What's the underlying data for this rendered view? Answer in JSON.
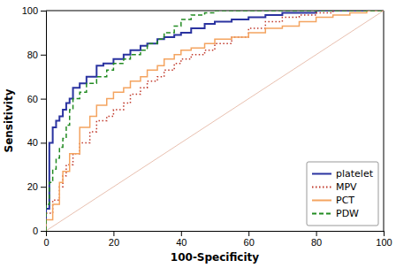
{
  "chart_data": {
    "type": "line",
    "xlabel": "100-Specificity",
    "ylabel": "Sensitivity",
    "xlim": [
      0,
      100
    ],
    "ylim": [
      0,
      100
    ],
    "xticks": [
      0,
      20,
      40,
      60,
      80,
      100
    ],
    "yticks": [
      0,
      20,
      40,
      60,
      80,
      100
    ],
    "grid": false,
    "legend": "lower right",
    "series": [
      {
        "color": "#e8c0b0",
        "line_style": "solid",
        "x": [
          0,
          100
        ],
        "values": [
          0,
          100
        ]
      },
      {
        "name": "platelet",
        "color": "#2a33a0",
        "line_style": "solid",
        "x": [
          0,
          0,
          1,
          1,
          2,
          2,
          3,
          3,
          4,
          4,
          5,
          5,
          6,
          6,
          7,
          7,
          8,
          8,
          10,
          10,
          12,
          12,
          15,
          15,
          17,
          17,
          20,
          20,
          23,
          23,
          25,
          25,
          28,
          28,
          30,
          30,
          33,
          33,
          35,
          35,
          38,
          38,
          40,
          40,
          43,
          43,
          47,
          47,
          50,
          50,
          55,
          55,
          60,
          60,
          65,
          65,
          70,
          70,
          75,
          75,
          80,
          80,
          85,
          85,
          90,
          90,
          95,
          95,
          100,
          100
        ],
        "values": [
          0,
          10,
          10,
          40,
          40,
          47,
          47,
          50,
          50,
          52,
          52,
          55,
          55,
          58,
          58,
          60,
          60,
          65,
          65,
          67,
          67,
          70,
          70,
          75,
          75,
          76,
          76,
          78,
          78,
          80,
          80,
          82,
          82,
          84,
          84,
          85,
          85,
          87,
          87,
          88,
          88,
          89,
          89,
          90,
          90,
          92,
          92,
          94,
          94,
          95,
          95,
          96,
          96,
          97,
          97,
          98,
          98,
          99,
          99,
          99,
          99,
          100,
          100,
          100,
          100,
          100,
          100,
          100,
          100,
          100
        ]
      },
      {
        "name": "MPV",
        "color": "#c0392b",
        "line_style": "dotted",
        "x": [
          0,
          0,
          2,
          2,
          4,
          4,
          5,
          5,
          6,
          6,
          8,
          8,
          10,
          10,
          13,
          13,
          15,
          15,
          18,
          18,
          20,
          20,
          23,
          23,
          25,
          25,
          28,
          28,
          30,
          30,
          33,
          33,
          35,
          35,
          38,
          38,
          40,
          40,
          43,
          43,
          47,
          47,
          50,
          50,
          55,
          55,
          60,
          60,
          65,
          65,
          70,
          70,
          75,
          75,
          80,
          80,
          85,
          85,
          90,
          90,
          95,
          95,
          100,
          100
        ],
        "values": [
          0,
          8,
          8,
          14,
          14,
          20,
          20,
          25,
          25,
          30,
          30,
          35,
          35,
          40,
          40,
          45,
          45,
          50,
          50,
          52,
          52,
          55,
          55,
          58,
          58,
          62,
          62,
          65,
          65,
          68,
          68,
          70,
          70,
          73,
          73,
          76,
          76,
          78,
          78,
          80,
          80,
          82,
          82,
          85,
          85,
          88,
          88,
          92,
          92,
          95,
          95,
          97,
          97,
          98,
          98,
          99,
          99,
          100,
          100,
          100,
          100,
          100,
          100,
          100
        ]
      },
      {
        "name": "PCT",
        "color": "#f4a460",
        "line_style": "solid",
        "x": [
          0,
          0,
          2,
          2,
          4,
          4,
          5,
          5,
          7,
          7,
          10,
          10,
          13,
          13,
          15,
          15,
          18,
          18,
          20,
          20,
          23,
          23,
          25,
          25,
          28,
          28,
          30,
          30,
          33,
          33,
          35,
          35,
          38,
          38,
          40,
          40,
          43,
          43,
          47,
          47,
          50,
          50,
          55,
          55,
          60,
          60,
          65,
          65,
          70,
          70,
          75,
          75,
          80,
          80,
          85,
          85,
          90,
          90,
          95,
          95,
          100,
          100
        ],
        "values": [
          0,
          5,
          5,
          12,
          12,
          22,
          22,
          27,
          27,
          35,
          35,
          47,
          47,
          52,
          52,
          57,
          57,
          60,
          60,
          63,
          63,
          65,
          65,
          68,
          68,
          70,
          70,
          73,
          73,
          75,
          75,
          78,
          78,
          80,
          80,
          82,
          82,
          83,
          83,
          85,
          85,
          87,
          87,
          88,
          88,
          90,
          90,
          92,
          92,
          93,
          93,
          95,
          95,
          97,
          97,
          98,
          98,
          99,
          99,
          100,
          100,
          100
        ]
      },
      {
        "name": "PDW",
        "color": "#228B22",
        "line_style": "dashed",
        "x": [
          0,
          0,
          1,
          1,
          2,
          2,
          3,
          3,
          4,
          4,
          5,
          5,
          6,
          6,
          7,
          7,
          8,
          8,
          10,
          10,
          12,
          12,
          15,
          15,
          18,
          18,
          20,
          20,
          23,
          23,
          25,
          25,
          28,
          28,
          30,
          30,
          33,
          33,
          35,
          35,
          38,
          38,
          40,
          40,
          43,
          43,
          47,
          47,
          50,
          50,
          55,
          55,
          60,
          60,
          65,
          65,
          70,
          70,
          75,
          75,
          80,
          80,
          85,
          85,
          90,
          90,
          95,
          95,
          100,
          100
        ],
        "values": [
          0,
          12,
          12,
          22,
          22,
          28,
          28,
          33,
          33,
          38,
          38,
          42,
          42,
          48,
          48,
          55,
          55,
          60,
          60,
          63,
          63,
          67,
          67,
          70,
          70,
          73,
          73,
          76,
          76,
          78,
          78,
          80,
          80,
          82,
          82,
          85,
          85,
          87,
          87,
          90,
          90,
          93,
          93,
          96,
          96,
          98,
          98,
          99,
          99,
          100,
          100,
          100,
          100,
          100,
          100,
          100,
          100,
          100,
          100,
          100,
          100,
          100,
          100,
          100,
          100,
          100,
          100,
          100,
          100,
          100
        ]
      }
    ]
  }
}
